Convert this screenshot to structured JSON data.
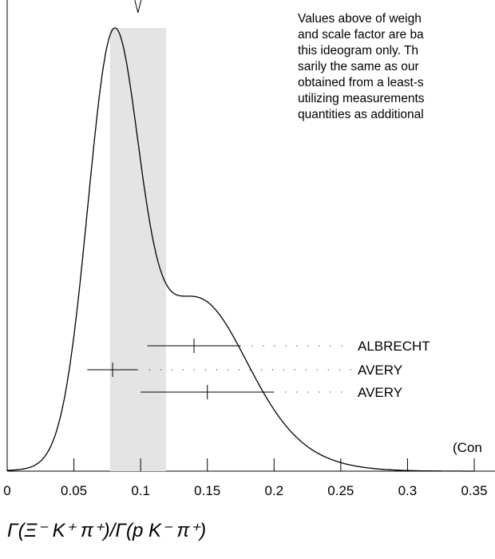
{
  "chart_data": {
    "type": "ideogram",
    "xlabel": "Γ(Ξ⁻ K⁺ π⁺)/Γ(p K⁻ π⁺)",
    "xlim": [
      0,
      0.35
    ],
    "xticks": [
      0,
      0.05,
      0.1,
      0.15,
      0.2,
      0.25,
      0.3,
      0.35
    ],
    "average": {
      "value": 0.098,
      "error": 0.021
    },
    "measurements": [
      {
        "name": "ALBRECHT",
        "value": 0.14,
        "error": 0.035
      },
      {
        "name": "AVERY",
        "value": 0.079,
        "error": 0.019
      },
      {
        "name": "AVERY",
        "value": 0.15,
        "error": 0.05
      }
    ],
    "note": [
      "Values above of weigh",
      "and scale factor are ba",
      "this ideogram only.  Th",
      "sarily the same as our",
      "obtained from a least-s",
      "utilizing measurements",
      "quantities as additional"
    ],
    "continued": "(Con"
  }
}
